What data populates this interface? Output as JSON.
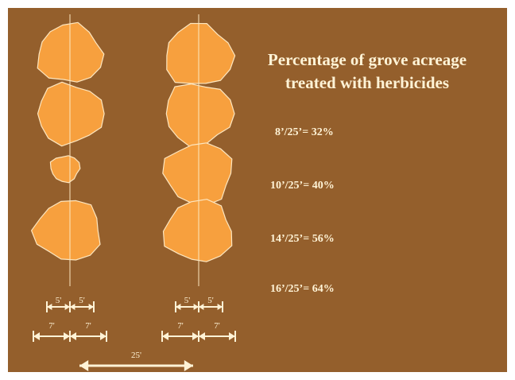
{
  "title": [
    "Percentage of grove acreage",
    "treated with herbicides"
  ],
  "formulas": [
    "8’/25’= 32%",
    "10’/25’= 40%",
    "14’/25’= 56%",
    "16’/25’= 64%"
  ],
  "dimensions": {
    "left": {
      "inner": [
        "5'",
        "5'"
      ],
      "outer": [
        "7'",
        "7'"
      ]
    },
    "right": {
      "inner": [
        "5'",
        "5'"
      ],
      "outer": [
        "7'",
        "7'"
      ]
    },
    "spacing": "25'"
  }
}
